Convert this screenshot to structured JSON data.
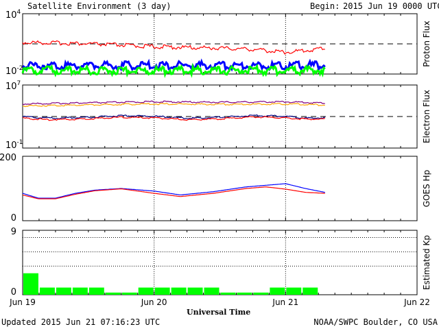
{
  "header": {
    "title": "Satellite Environment (3 day)",
    "begin_label": "Begin:",
    "begin_value": "2015 Jun 19 0000 UTC"
  },
  "footer": {
    "updated": "Updated 2015 Jun 21 07:16:23 UTC",
    "credit": "NOAA/SWPC Boulder, CO USA",
    "xlabel": "Universal Time"
  },
  "x_axis": {
    "ticks": [
      "Jun 19",
      "Jun 20",
      "Jun 21",
      "Jun 22"
    ],
    "range_days": [
      0,
      3
    ]
  },
  "colors": {
    "red": "#ff0000",
    "blue": "#0000ff",
    "green": "#00ff00",
    "orange": "#ffa500",
    "purple": "#800080",
    "darkblue": "#000080"
  },
  "chart_data": [
    {
      "type": "line",
      "panel": "proton",
      "ylabel": "Proton Flux",
      "yscale": "log",
      "ylim": [
        0.01,
        10000
      ],
      "ytick_labels": [
        {
          "base": "10",
          "exp": "4",
          "value": 10000
        },
        {
          "base": "10",
          "exp": "-2",
          "value": 0.01
        }
      ],
      "threshold": 10,
      "series": [
        {
          "color": "red",
          "x": [
            0,
            0.25,
            0.5,
            0.75,
            1.0,
            1.25,
            1.5,
            1.75,
            1.9,
            2.0,
            2.1,
            2.2,
            2.3
          ],
          "values": [
            11,
            10,
            8,
            6,
            4.2,
            3.5,
            3.0,
            2.3,
            1.5,
            1.2,
            1.5,
            2.0,
            3.0
          ]
        },
        {
          "color": "blue",
          "x": [
            0,
            2.3
          ],
          "values": [
            0.045,
            0.045
          ]
        },
        {
          "color": "green",
          "x": [
            0,
            2.3
          ],
          "values": [
            0.014,
            0.014
          ]
        }
      ]
    },
    {
      "type": "line",
      "panel": "electron",
      "ylabel": "Electron Flux",
      "yscale": "log",
      "ylim": [
        0.1,
        10000000
      ],
      "ytick_labels": [
        {
          "base": "10",
          "exp": "7",
          "value": 10000000
        },
        {
          "base": "10",
          "exp": "-1",
          "value": 0.1
        }
      ],
      "threshold": 1000,
      "series": [
        {
          "color": "purple",
          "x": [
            0,
            0.5,
            1.0,
            1.5,
            2.0,
            2.3
          ],
          "values": [
            40000,
            55000,
            75000,
            65000,
            75000,
            50000
          ]
        },
        {
          "color": "orange",
          "x": [
            0,
            0.5,
            1.0,
            1.5,
            2.0,
            2.3
          ],
          "values": [
            22000,
            30000,
            40000,
            35000,
            40000,
            28000
          ]
        },
        {
          "color": "darkblue",
          "x": [
            0,
            0.2,
            0.5,
            0.75,
            1.0,
            1.25,
            1.5,
            1.75,
            2.0,
            2.15,
            2.3
          ],
          "values": [
            1000,
            600,
            800,
            1300,
            1100,
            600,
            800,
            1300,
            1100,
            600,
            700
          ]
        },
        {
          "color": "red",
          "x": [
            0,
            0.2,
            0.5,
            0.75,
            1.0,
            1.25,
            1.5,
            1.75,
            2.0,
            2.15,
            2.3
          ],
          "values": [
            600,
            400,
            500,
            800,
            650,
            400,
            500,
            900,
            700,
            450,
            500
          ]
        }
      ]
    },
    {
      "type": "line",
      "panel": "hp",
      "ylabel": "GOES Hp",
      "yscale": "linear",
      "ylim": [
        0,
        200
      ],
      "ytick_labels": [
        {
          "base": "200",
          "value": 200
        },
        {
          "base": "0",
          "value": 0
        }
      ],
      "series": [
        {
          "color": "blue",
          "x": [
            0,
            0.12,
            0.25,
            0.4,
            0.55,
            0.75,
            1.0,
            1.2,
            1.45,
            1.7,
            1.85,
            2.0,
            2.15,
            2.3
          ],
          "values": [
            85,
            70,
            70,
            85,
            95,
            100,
            92,
            80,
            90,
            105,
            110,
            115,
            100,
            88
          ]
        },
        {
          "color": "red",
          "x": [
            0,
            0.12,
            0.25,
            0.4,
            0.55,
            0.75,
            1.0,
            1.2,
            1.45,
            1.7,
            1.85,
            2.0,
            2.15,
            2.3
          ],
          "values": [
            80,
            68,
            68,
            82,
            93,
            99,
            85,
            75,
            85,
            100,
            105,
            98,
            88,
            85
          ]
        }
      ]
    },
    {
      "type": "bar",
      "panel": "kp",
      "ylabel": "Estimated Kp",
      "ylim": [
        0,
        9
      ],
      "ytick_labels": [
        {
          "base": "9",
          "value": 9
        },
        {
          "base": "0",
          "value": 0
        }
      ],
      "gridlines": [
        4,
        6,
        8
      ],
      "bin_hours": 3,
      "values": [
        3,
        1,
        1,
        1,
        1,
        0.3,
        0.3,
        1,
        1,
        1,
        1,
        1,
        0.3,
        0.3,
        0.3,
        1,
        1,
        1
      ]
    }
  ]
}
